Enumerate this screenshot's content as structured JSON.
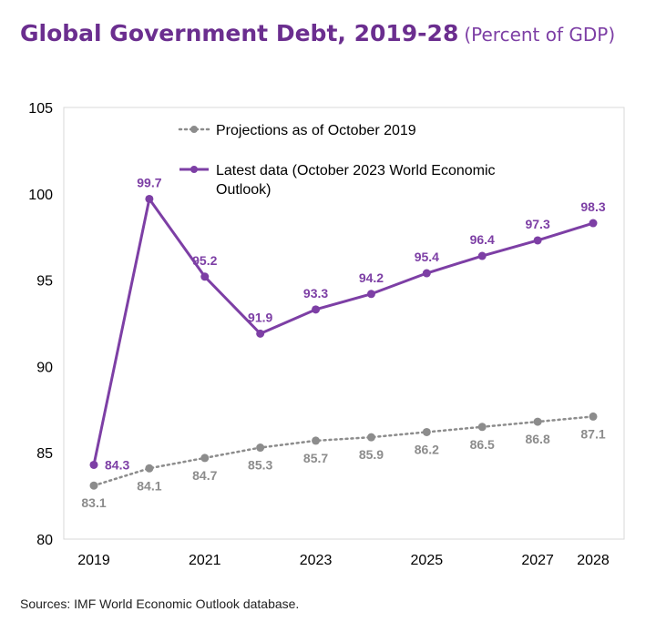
{
  "title": "Global Government Debt, 2019-28",
  "subtitle": "(Percent of GDP)",
  "source": "Sources: IMF World Economic Outlook database.",
  "colors": {
    "title": "#6b2e8f",
    "latest": "#7d3fa5",
    "projections": "#8c8c8c"
  },
  "chart_data": {
    "type": "line",
    "x": [
      2019,
      2020,
      2021,
      2022,
      2023,
      2024,
      2025,
      2026,
      2027,
      2028
    ],
    "x_tick_labels": [
      "2019",
      "2021",
      "2023",
      "2025",
      "2027",
      "2028"
    ],
    "x_tick_values": [
      2019,
      2021,
      2023,
      2025,
      2027,
      2028
    ],
    "y_tick_labels": [
      "80",
      "85",
      "90",
      "95",
      "100",
      "105"
    ],
    "ylim": [
      80,
      105
    ],
    "grid": false,
    "legend_position": "top",
    "series": [
      {
        "name": "Projections as of October 2019",
        "style": "dotted",
        "values": [
          83.1,
          84.1,
          84.7,
          85.3,
          85.7,
          85.9,
          86.2,
          86.5,
          86.8,
          87.1
        ],
        "labels": [
          "83.1",
          "84.1",
          "84.7",
          "85.3",
          "85.7",
          "85.9",
          "86.2",
          "86.5",
          "86.8",
          "87.1"
        ]
      },
      {
        "name": "Latest data (October 2023 World Economic Outlook)",
        "style": "solid",
        "values": [
          84.3,
          99.7,
          95.2,
          91.9,
          93.3,
          94.2,
          95.4,
          96.4,
          97.3,
          98.3
        ],
        "labels": [
          "84.3",
          "99.7",
          "95.2",
          "91.9",
          "93.3",
          "94.2",
          "95.4",
          "96.4",
          "97.3",
          "98.3"
        ]
      }
    ],
    "legend_lines": [
      [
        "Projections as of October 2019"
      ],
      [
        "Latest data (October 2023 World Economic",
        "Outlook)"
      ]
    ]
  }
}
